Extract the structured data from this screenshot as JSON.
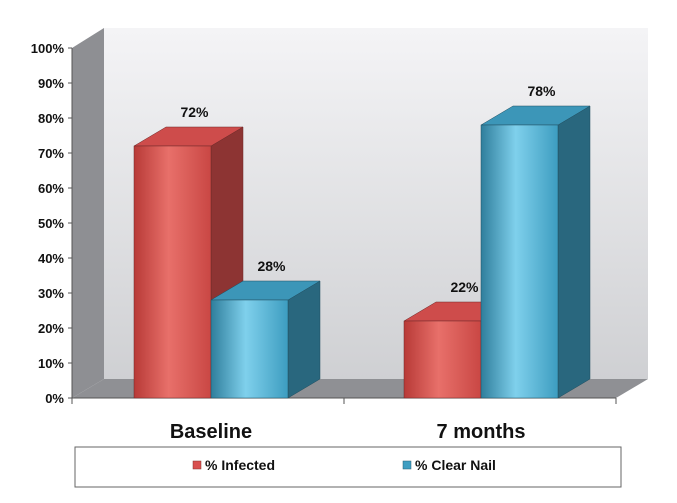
{
  "chart_data": {
    "type": "bar",
    "categories": [
      "Baseline",
      "7 months"
    ],
    "series": [
      {
        "name": "% Infected",
        "values": [
          72,
          22
        ],
        "color": "#d9504f"
      },
      {
        "name": "% Clear Nail",
        "values": [
          28,
          78
        ],
        "color": "#3f9ec2"
      }
    ],
    "data_labels": [
      [
        "72%",
        "22%"
      ],
      [
        "28%",
        "78%"
      ]
    ],
    "yticks": [
      "0%",
      "10%",
      "20%",
      "30%",
      "40%",
      "50%",
      "60%",
      "70%",
      "80%",
      "90%",
      "100%"
    ],
    "ylim": [
      0,
      100
    ],
    "grid": false,
    "legend": "bottom",
    "style": "3d"
  }
}
